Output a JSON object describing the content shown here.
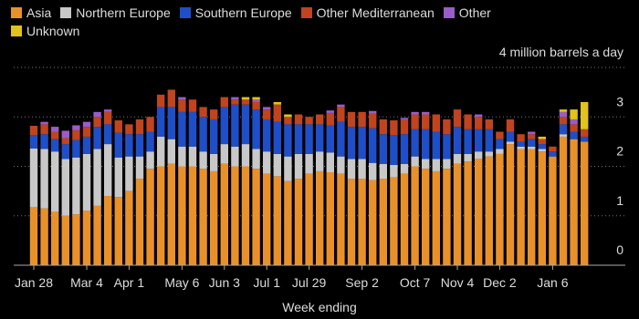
{
  "chart_data": {
    "type": "stacked_bar",
    "x_label": "Week ending",
    "categories": [
      "Jan 28",
      null,
      null,
      null,
      null,
      "Mar 4",
      null,
      null,
      null,
      "Apr 1",
      null,
      null,
      null,
      null,
      "May 6",
      null,
      null,
      null,
      "Jun 3",
      null,
      null,
      null,
      "Jul 1",
      null,
      null,
      null,
      "Jul 29",
      null,
      null,
      null,
      null,
      "Sep 2",
      null,
      null,
      null,
      null,
      "Oct 7",
      null,
      null,
      null,
      "Nov 4",
      null,
      null,
      null,
      "Dec 2",
      null,
      null,
      null,
      null,
      "Jan 6",
      null,
      null,
      null
    ],
    "series": [
      {
        "name": "Asia",
        "color": "#e8912b",
        "values": [
          1.18,
          1.15,
          1.08,
          1.0,
          1.03,
          1.1,
          1.2,
          1.4,
          1.38,
          1.5,
          1.75,
          1.95,
          2.0,
          2.05,
          2.0,
          2.0,
          1.95,
          1.9,
          2.05,
          2.0,
          2.0,
          1.95,
          1.85,
          1.8,
          1.7,
          1.75,
          1.85,
          1.9,
          1.88,
          1.85,
          1.75,
          1.75,
          1.72,
          1.75,
          1.78,
          1.85,
          2.0,
          1.95,
          1.9,
          1.95,
          2.05,
          2.1,
          2.15,
          2.2,
          2.25,
          2.45,
          2.35,
          2.35,
          2.3,
          2.2,
          2.6,
          2.55,
          2.5
        ]
      },
      {
        "name": "Northern Europe",
        "color": "#c8c8c8",
        "values": [
          1.18,
          1.2,
          1.22,
          1.15,
          1.15,
          1.15,
          1.15,
          1.05,
          0.8,
          0.7,
          0.45,
          0.35,
          0.6,
          0.5,
          0.4,
          0.4,
          0.35,
          0.35,
          0.4,
          0.4,
          0.45,
          0.4,
          0.45,
          0.45,
          0.5,
          0.5,
          0.4,
          0.4,
          0.4,
          0.35,
          0.4,
          0.4,
          0.35,
          0.3,
          0.25,
          0.2,
          0.2,
          0.2,
          0.25,
          0.2,
          0.2,
          0.15,
          0.15,
          0.1,
          0.1,
          0.05,
          0.05,
          0.05,
          0.05,
          0,
          0.05,
          0,
          0
        ]
      },
      {
        "name": "Southern Europe",
        "color": "#1f4fc8",
        "values": [
          0.27,
          0.3,
          0.25,
          0.3,
          0.35,
          0.35,
          0.45,
          0.4,
          0.5,
          0.45,
          0.45,
          0.4,
          0.6,
          0.65,
          0.7,
          0.7,
          0.7,
          0.7,
          0.75,
          0.85,
          0.8,
          0.8,
          0.65,
          0.65,
          0.65,
          0.6,
          0.6,
          0.55,
          0.55,
          0.7,
          0.65,
          0.65,
          0.7,
          0.6,
          0.6,
          0.6,
          0.55,
          0.6,
          0.55,
          0.5,
          0.55,
          0.5,
          0.45,
          0.45,
          0.2,
          0.2,
          0.1,
          0.15,
          0.1,
          0.1,
          0.2,
          0.15,
          0.1
        ]
      },
      {
        "name": "Other Mediterranean",
        "color": "#c0441e",
        "values": [
          0.19,
          0.2,
          0.15,
          0.12,
          0.2,
          0.2,
          0.2,
          0.25,
          0.25,
          0.2,
          0.3,
          0.3,
          0.25,
          0.35,
          0.25,
          0.25,
          0.2,
          0.2,
          0.2,
          0.1,
          0.1,
          0.15,
          0.2,
          0.35,
          0.15,
          0.2,
          0.15,
          0.2,
          0.25,
          0.3,
          0.3,
          0.3,
          0.3,
          0.3,
          0.3,
          0.3,
          0.3,
          0.3,
          0.35,
          0.3,
          0.35,
          0.3,
          0.25,
          0.2,
          0.15,
          0.25,
          0.15,
          0.1,
          0.1,
          0.1,
          0.15,
          0.15,
          0.15
        ]
      },
      {
        "name": "Other",
        "color": "#9a5ccc",
        "values": [
          0,
          0.05,
          0.1,
          0.15,
          0.1,
          0.1,
          0.1,
          0.05,
          0,
          0,
          0,
          0,
          0,
          0,
          0.05,
          0,
          0,
          0,
          0,
          0.05,
          0,
          0.05,
          0.05,
          0,
          0,
          0,
          0,
          0,
          0.05,
          0.05,
          0,
          0,
          0.05,
          0,
          0,
          0.03,
          0.05,
          0.05,
          0,
          0,
          0,
          0,
          0.05,
          0,
          0,
          0,
          0,
          0.05,
          0,
          0,
          0.1,
          0.1,
          0
        ]
      },
      {
        "name": "Unknown",
        "color": "#e2c21b",
        "values": [
          0,
          0,
          0,
          0,
          0,
          0,
          0,
          0,
          0,
          0,
          0,
          0,
          0,
          0,
          0,
          0,
          0,
          0,
          0,
          0,
          0.05,
          0.05,
          0,
          0.05,
          0.05,
          0,
          0,
          0,
          0,
          0,
          0,
          0,
          0,
          0,
          0,
          0,
          0,
          0,
          0,
          0,
          0,
          0,
          0,
          0,
          0,
          0,
          0,
          0,
          0.05,
          0,
          0.05,
          0.2,
          0.55
        ]
      }
    ],
    "ylim": [
      0,
      4
    ],
    "yticks": [
      0,
      1,
      2,
      3,
      {
        "value": 4,
        "label": "4 million barrels a day"
      }
    ],
    "grid": true
  }
}
